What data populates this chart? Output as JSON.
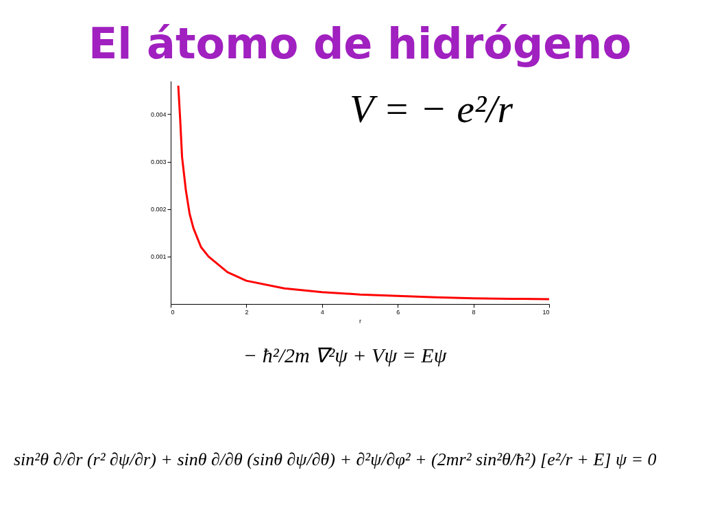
{
  "chart_data": {
    "type": "line",
    "title": "El átomo de hidrógeno",
    "xlabel": "r",
    "x": [
      0.2,
      0.25,
      0.3,
      0.4,
      0.5,
      0.6,
      0.8,
      1,
      1.5,
      2,
      3,
      4,
      5,
      6,
      7,
      8,
      9,
      10
    ],
    "series": [
      {
        "color": "#ff0000",
        "values": [
          0.0046,
          0.0039,
          0.0031,
          0.0024,
          0.0019,
          0.0016,
          0.0012,
          0.001,
          0.00067,
          0.00049,
          0.00033,
          0.00025,
          0.0002,
          0.00017,
          0.00014,
          0.00012,
          0.00011,
          0.0001
        ]
      }
    ],
    "xlim": [
      0,
      10
    ],
    "xticks": [
      0,
      2,
      4,
      6,
      8,
      10
    ],
    "ylim": [
      0,
      0.0047
    ],
    "yticks": [
      0.001,
      0.002,
      0.003,
      0.004
    ],
    "grid": false,
    "marker": "none",
    "line_style": "solid",
    "annotations": [
      "V = − e²/r",
      "− ħ²/2m ∇²ψ + Vψ = Eψ",
      "sin²θ ∂/∂r (r² ∂ψ/∂r) + sinθ ∂/∂θ (sinθ ∂ψ/∂θ) + ∂²ψ/∂φ² + (2mr² sin²θ/ħ²) [e²/r + E] ψ = 0"
    ]
  }
}
